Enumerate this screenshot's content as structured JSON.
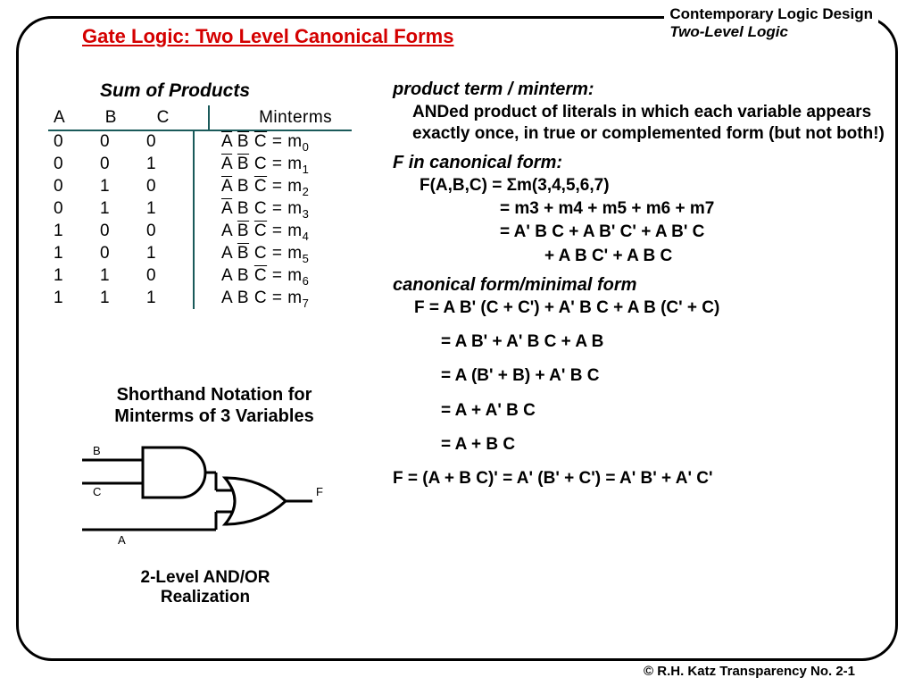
{
  "header": {
    "line1": "Contemporary Logic Design",
    "line2": "Two-Level Logic"
  },
  "title": "Gate Logic:  Two Level Canonical Forms",
  "footer": "© R.H. Katz   Transparency No. 2-1",
  "sop_title": "Sum of Products",
  "table": {
    "headers": {
      "a": "A",
      "b": "B",
      "c": "C",
      "m": "Minterms"
    },
    "rows": [
      {
        "a": "0",
        "b": "0",
        "c": "0",
        "t1o": true,
        "t2o": true,
        "t3o": true,
        "idx": "0"
      },
      {
        "a": "0",
        "b": "0",
        "c": "1",
        "t1o": true,
        "t2o": true,
        "t3o": false,
        "idx": "1"
      },
      {
        "a": "0",
        "b": "1",
        "c": "0",
        "t1o": true,
        "t2o": false,
        "t3o": true,
        "idx": "2"
      },
      {
        "a": "0",
        "b": "1",
        "c": "1",
        "t1o": true,
        "t2o": false,
        "t3o": false,
        "idx": "3"
      },
      {
        "a": "1",
        "b": "0",
        "c": "0",
        "t1o": false,
        "t2o": true,
        "t3o": true,
        "idx": "4"
      },
      {
        "a": "1",
        "b": "0",
        "c": "1",
        "t1o": false,
        "t2o": true,
        "t3o": false,
        "idx": "5"
      },
      {
        "a": "1",
        "b": "1",
        "c": "0",
        "t1o": false,
        "t2o": false,
        "t3o": true,
        "idx": "6"
      },
      {
        "a": "1",
        "b": "1",
        "c": "1",
        "t1o": false,
        "t2o": false,
        "t3o": false,
        "idx": "7"
      }
    ]
  },
  "shorthand_label": "Shorthand Notation for Minterms of 3 Variables",
  "gate": {
    "inputs": {
      "b": "B",
      "c": "C",
      "a": "A"
    },
    "output": "F",
    "caption": "2-Level AND/OR Realization"
  },
  "right": {
    "minterm_head": "product term / minterm:",
    "minterm_body": "ANDed product of literals in which each variable appears exactly once, in true or complemented form (but not both!)",
    "canon_head": "F in canonical form:",
    "canon": {
      "l1": "F(A,B,C) = Σm(3,4,5,6,7)",
      "l2": "= m3 + m4 + m5 + m6 + m7",
      "l3": "= A' B C  +  A B' C'  +  A B' C",
      "l4": "+  A B C'  +  A B C"
    },
    "min_head": "canonical form/minimal form",
    "deriv": {
      "d1": "F = A B' (C + C')  +  A' B C  +  A B (C' + C)",
      "d2": "= A B'  +  A' B C  +  A B",
      "d3": "= A (B' + B)  +  A' B C",
      "d4": "= A  +  A' B C",
      "d5": "= A  +  B C"
    },
    "final": "F = (A + B C)' = A' (B' + C') = A' B'  +  A' C'"
  },
  "colors": {
    "title": "#d40000",
    "table_rule": "#1a5a5a",
    "text": "#000000",
    "background": "#ffffff"
  }
}
